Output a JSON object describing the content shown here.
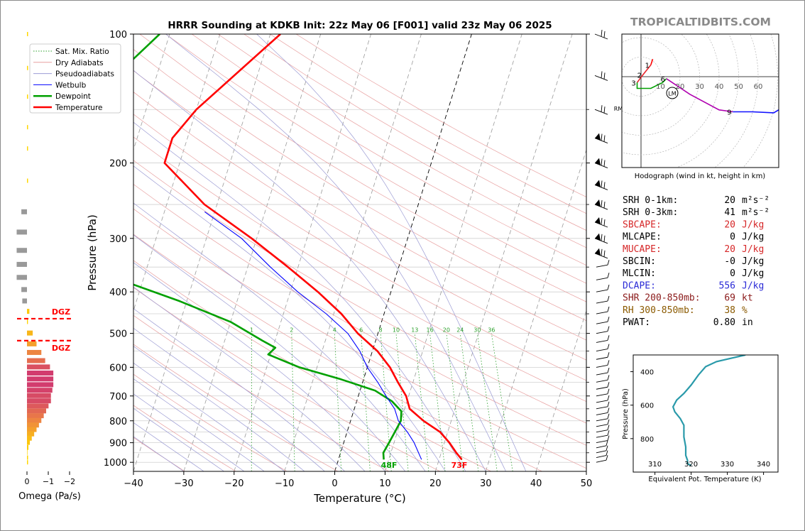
{
  "title": "HRRR Sounding at KDKB Init: 22z May 06 [F001] valid 23z May 06 2025",
  "watermark": "TROPICALTIDBITS.COM",
  "skewt": {
    "xlabel": "Temperature (°C)",
    "ylabel": "Pressure (hPa)",
    "xticks": [
      -40,
      -30,
      -20,
      -10,
      0,
      10,
      20,
      30,
      40,
      50
    ],
    "xtick_labels": [
      "−40",
      "−30",
      "−20",
      "−10",
      "0",
      "10",
      "20",
      "30",
      "40",
      "50"
    ],
    "yticks": [
      100,
      200,
      300,
      400,
      500,
      600,
      700,
      800,
      900,
      1000
    ],
    "xlim": [
      -40,
      50
    ],
    "ylim": [
      1050,
      100
    ],
    "surface_temp_label": "73F",
    "surface_dew_label": "48F",
    "mixing_ratio_labels": [
      "1",
      "2",
      "4",
      "6",
      "8",
      "10",
      "13",
      "16",
      "20",
      "24",
      "30",
      "36"
    ],
    "legend": [
      {
        "label": "Sat. Mix. Ratio",
        "color": "#2ca02c",
        "style": "dotted"
      },
      {
        "label": "Dry Adiabats",
        "color": "#e8a0a0",
        "style": "solid"
      },
      {
        "label": "Pseudoadiabats",
        "color": "#9b9bd4",
        "style": "solid"
      },
      {
        "label": "Wetbulb",
        "color": "#0000ff",
        "style": "solid"
      },
      {
        "label": "Dewpoint",
        "color": "#00a000",
        "style": "solid"
      },
      {
        "label": "Temperature",
        "color": "#ff0000",
        "style": "solid"
      }
    ]
  },
  "omega": {
    "xlabel": "Omega (Pa/s)",
    "xtick_labels": [
      "0",
      "−1",
      "−2"
    ],
    "dgz_label": "DGZ"
  },
  "hodograph": {
    "caption": "Hodograph (wind in kt, height in km)",
    "ring_labels": [
      "10",
      "20",
      "30",
      "40",
      "50",
      "60"
    ],
    "height_labels": [
      "1",
      "2",
      "3",
      "6",
      "9"
    ],
    "lm_label": "LM",
    "rm_label": "RM"
  },
  "indices": [
    {
      "name": "SRH 0-1km:",
      "value": "20",
      "unit": "m²s⁻²",
      "color": "#000000"
    },
    {
      "name": "SRH 0-3km:",
      "value": "41",
      "unit": "m²s⁻²",
      "color": "#000000"
    },
    {
      "name": "SBCAPE:",
      "value": "20",
      "unit": "J/kg",
      "color": "#d62728"
    },
    {
      "name": "MLCAPE:",
      "value": "0",
      "unit": "J/kg",
      "color": "#000000"
    },
    {
      "name": "MUCAPE:",
      "value": "20",
      "unit": "J/kg",
      "color": "#d62728"
    },
    {
      "name": "SBCIN:",
      "value": "-0",
      "unit": "J/kg",
      "color": "#000000"
    },
    {
      "name": "MLCIN:",
      "value": "0",
      "unit": "J/kg",
      "color": "#000000"
    },
    {
      "name": "DCAPE:",
      "value": "556",
      "unit": "J/kg",
      "color": "#2b2bd6"
    },
    {
      "name": "SHR 200-850mb:",
      "value": "69",
      "unit": "kt",
      "color": "#8b1a1a"
    },
    {
      "name": "RH 300-850mb:",
      "value": "38",
      "unit": "%",
      "color": "#8b5a00"
    },
    {
      "name": "PWAT:",
      "value": "0.80",
      "unit": "in",
      "color": "#000000"
    }
  ],
  "theta_e": {
    "xlabel": "Equivalent Pot. Temperature (K)",
    "ylabel": "Pressure (hPa)",
    "xtick_labels": [
      "310",
      "320",
      "330",
      "340"
    ],
    "ytick_labels": [
      "400",
      "600",
      "800"
    ]
  },
  "chart_data": [
    {
      "type": "line",
      "name": "skew-t",
      "xlabel": "Temperature (°C)",
      "ylabel": "Pressure (hPa)",
      "xlim": [
        -40,
        50
      ],
      "ylim": [
        1050,
        100
      ],
      "y_scale": "log",
      "series": [
        {
          "name": "Temperature",
          "color": "#ff0000",
          "points": [
            [
              100,
              -38.0
            ],
            [
              150,
              -50.0
            ],
            [
              175,
              -53.0
            ],
            [
              200,
              -53.0
            ],
            [
              250,
              -42.5
            ],
            [
              300,
              -31.0
            ],
            [
              350,
              -22.0
            ],
            [
              400,
              -14.5
            ],
            [
              450,
              -8.5
            ],
            [
              500,
              -4.0
            ],
            [
              550,
              1.0
            ],
            [
              600,
              4.5
            ],
            [
              650,
              7.0
            ],
            [
              700,
              9.5
            ],
            [
              750,
              11.0
            ],
            [
              800,
              14.5
            ],
            [
              850,
              18.5
            ],
            [
              900,
              21.0
            ],
            [
              950,
              23.0
            ],
            [
              985,
              24.5
            ]
          ]
        },
        {
          "name": "Dewpoint",
          "color": "#00a000",
          "points": [
            [
              100,
              -62.0
            ],
            [
              120,
              -67.0
            ],
            [
              140,
              -67.5
            ],
            [
              175,
              -64.0
            ],
            [
              200,
              -61.5
            ],
            [
              230,
              -61.0
            ],
            [
              260,
              -61.5
            ],
            [
              300,
              -62.0
            ],
            [
              350,
              -55.5
            ],
            [
              380,
              -53.0
            ],
            [
              420,
              -41.5
            ],
            [
              470,
              -30.0
            ],
            [
              520,
              -22.5
            ],
            [
              540,
              -19.5
            ],
            [
              560,
              -20.5
            ],
            [
              600,
              -13.5
            ],
            [
              640,
              -4.5
            ],
            [
              680,
              3.0
            ],
            [
              720,
              7.0
            ],
            [
              760,
              9.5
            ],
            [
              800,
              10.0
            ],
            [
              850,
              9.5
            ],
            [
              900,
              9.0
            ],
            [
              950,
              8.5
            ],
            [
              985,
              9.0
            ]
          ]
        },
        {
          "name": "Wetbulb",
          "color": "#0000ff",
          "points": [
            [
              260,
              -42.0
            ],
            [
              300,
              -33.0
            ],
            [
              350,
              -25.5
            ],
            [
              400,
              -18.5
            ],
            [
              450,
              -11.5
            ],
            [
              500,
              -6.0
            ],
            [
              550,
              -2.5
            ],
            [
              600,
              0.0
            ],
            [
              650,
              3.0
            ],
            [
              700,
              5.5
            ],
            [
              750,
              8.0
            ],
            [
              800,
              9.5
            ],
            [
              850,
              12.0
            ],
            [
              900,
              14.0
            ],
            [
              950,
              15.5
            ],
            [
              985,
              16.5
            ]
          ]
        }
      ]
    },
    {
      "type": "bar",
      "name": "omega",
      "xlabel": "Omega (Pa/s)",
      "xlim": [
        0,
        -2
      ],
      "pressures": [
        100,
        120,
        140,
        165,
        185,
        220,
        260,
        290,
        320,
        345,
        370,
        395,
        420,
        445,
        470,
        500,
        530,
        555,
        580,
        600,
        620,
        640,
        660,
        680,
        700,
        720,
        740,
        760,
        780,
        800,
        820,
        840,
        860,
        880,
        900,
        925,
        950,
        975,
        1000
      ],
      "values": [
        0.0,
        0.0,
        0.0,
        0.0,
        0.0,
        0.0,
        -0.12,
        -0.22,
        -0.22,
        -0.22,
        -0.22,
        -0.12,
        -0.1,
        -0.05,
        -0.02,
        -0.12,
        -0.2,
        -0.3,
        -0.38,
        -0.48,
        -0.55,
        -0.55,
        -0.55,
        -0.53,
        -0.5,
        -0.5,
        -0.45,
        -0.4,
        -0.35,
        -0.3,
        -0.25,
        -0.2,
        -0.15,
        -0.1,
        -0.06,
        -0.03,
        -0.01,
        0.0,
        0.0
      ]
    },
    {
      "type": "line",
      "name": "hodograph",
      "series": [
        {
          "name": "0-1 km",
          "color": "#ff0000",
          "points": [
            [
              6,
              9
            ],
            [
              5,
              6
            ]
          ]
        },
        {
          "name": "1-3 km",
          "color": "#e8232a",
          "points": [
            [
              5,
              6
            ],
            [
              1,
              1
            ],
            [
              -2,
              -3
            ]
          ]
        },
        {
          "name": "3-6 km",
          "color": "#00a000",
          "points": [
            [
              -2,
              -3
            ],
            [
              -2,
              -6
            ],
            [
              5,
              -6
            ],
            [
              11,
              -3
            ],
            [
              13,
              -1
            ]
          ]
        },
        {
          "name": "6-9 km",
          "color": "#b000b0",
          "points": [
            [
              13,
              -1
            ],
            [
              25,
              -9
            ],
            [
              40,
              -17
            ],
            [
              47,
              -18
            ]
          ]
        },
        {
          "name": "9+ km",
          "color": "#1010ff",
          "points": [
            [
              47,
              -18
            ],
            [
              57,
              -18
            ],
            [
              68,
              -18.5
            ],
            [
              73,
              -15.5
            ],
            [
              74,
              -12
            ]
          ]
        }
      ]
    },
    {
      "type": "line",
      "name": "theta-e",
      "xlabel": "Equivalent Pot. Temperature (K)",
      "ylabel": "Pressure (hPa)",
      "xlim": [
        304,
        344
      ],
      "ylim": [
        1000,
        300
      ],
      "series": [
        {
          "name": "Theta-e",
          "color": "#2a9aaa",
          "points": [
            [
              335,
              300
            ],
            [
              331,
              320
            ],
            [
              327,
              340
            ],
            [
              324,
              370
            ],
            [
              322,
              420
            ],
            [
              320,
              480
            ],
            [
              318,
              530
            ],
            [
              316,
              570
            ],
            [
              315,
              610
            ],
            [
              315.5,
              640
            ],
            [
              317,
              680
            ],
            [
              318,
              720
            ],
            [
              318,
              790
            ],
            [
              318.5,
              850
            ],
            [
              318.5,
              900
            ],
            [
              319,
              930
            ],
            [
              319,
              950
            ],
            [
              320,
              960
            ]
          ]
        }
      ]
    }
  ]
}
